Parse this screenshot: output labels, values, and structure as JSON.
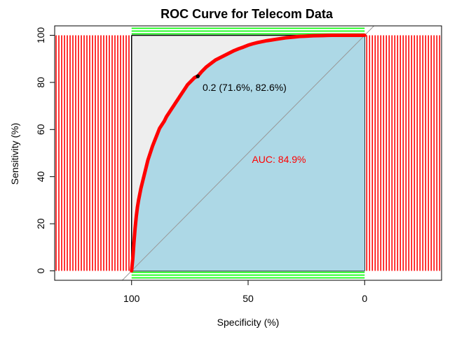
{
  "chart_data": {
    "type": "line",
    "title": "ROC Curve for Telecom Data",
    "xlabel": "Specificity (%)",
    "ylabel": "Sensitivity (%)",
    "xlim": [
      133,
      -33
    ],
    "ylim": [
      -4,
      104
    ],
    "x_reversed": true,
    "x_ticks": [
      100,
      50,
      0
    ],
    "y_ticks": [
      0,
      20,
      40,
      60,
      80,
      100
    ],
    "grid": false,
    "auc_fill_color": "#ADD8E6",
    "polygon_fill_color": "#EEEEEE",
    "curve_color": "#FF0000",
    "max_auc_polygon_color": "#FF0000",
    "partial_auc_color": "#00FF00",
    "diagonal_color": "#999999",
    "series": [
      {
        "x": [
          100,
          99.5,
          99,
          98.5,
          98,
          97.5,
          97,
          96,
          95,
          94,
          93,
          92,
          91,
          90,
          89,
          88,
          87,
          86,
          85,
          84,
          83,
          82,
          81,
          80,
          79,
          78,
          77,
          76,
          75,
          74,
          73,
          72,
          71.6,
          70,
          68,
          66,
          64,
          62,
          60,
          58,
          56,
          54,
          52,
          50,
          48,
          46,
          44,
          42,
          40,
          38,
          36,
          34,
          32,
          30,
          28,
          26,
          24,
          22,
          20,
          18,
          16,
          14,
          12,
          10,
          8,
          6,
          4,
          2,
          0
        ],
        "y": [
          0,
          5,
          12,
          18,
          23,
          27,
          30,
          35,
          39,
          43,
          47,
          50,
          53,
          55.5,
          58,
          60.5,
          62,
          63.5,
          65.5,
          67,
          68.5,
          70,
          71.5,
          73,
          74.5,
          76,
          77.5,
          79,
          80,
          81,
          82,
          82.5,
          82.6,
          84.5,
          86.5,
          88,
          89.5,
          90.5,
          91.5,
          92.5,
          93.5,
          94.3,
          95,
          95.8,
          96.4,
          96.9,
          97.3,
          97.7,
          98,
          98.3,
          98.6,
          98.9,
          99.1,
          99.3,
          99.5,
          99.6,
          99.7,
          99.8,
          99.85,
          99.9,
          99.95,
          100,
          100,
          100,
          100,
          100,
          100,
          100,
          100
        ]
      }
    ],
    "threshold_point": {
      "x": 71.6,
      "y": 82.6
    },
    "annotations": {
      "threshold_label": "0.2 (71.6%, 82.6%)",
      "auc_label": "AUC: 84.9%"
    }
  }
}
